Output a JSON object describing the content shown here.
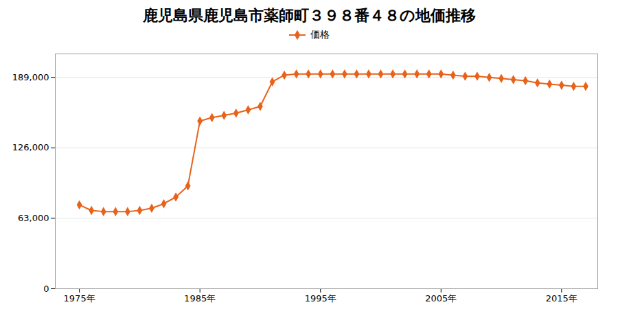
{
  "chart_data": {
    "type": "line",
    "title": "鹿児島県鹿児島市薬師町３９８番４８の地価推移",
    "x": [
      1975,
      1976,
      1977,
      1978,
      1979,
      1980,
      1981,
      1982,
      1983,
      1984,
      1985,
      1986,
      1987,
      1988,
      1989,
      1990,
      1991,
      1992,
      1993,
      1994,
      1995,
      1996,
      1997,
      1998,
      1999,
      2000,
      2001,
      2002,
      2003,
      2004,
      2005,
      2006,
      2007,
      2008,
      2009,
      2010,
      2011,
      2012,
      2013,
      2014,
      2015,
      2016,
      2017
    ],
    "series": [
      {
        "name": "価格",
        "color": "#e8621a",
        "marker": "diamond",
        "values": [
          75000,
          70000,
          69000,
          69000,
          69000,
          70000,
          72000,
          76000,
          82000,
          92000,
          150000,
          153000,
          155000,
          157000,
          160000,
          163000,
          185000,
          191000,
          192000,
          192000,
          192000,
          192000,
          192000,
          192000,
          192000,
          192000,
          192000,
          192000,
          192000,
          192000,
          192000,
          191000,
          190000,
          190000,
          189000,
          188000,
          187000,
          186000,
          184000,
          183000,
          182000,
          181000,
          181000
        ]
      }
    ],
    "xlim": [
      1973,
      2018
    ],
    "xticks": [
      {
        "value": 1975,
        "label": "1975年"
      },
      {
        "value": 1985,
        "label": "1985年"
      },
      {
        "value": 1995,
        "label": "1995年"
      },
      {
        "value": 2005,
        "label": "2005年"
      },
      {
        "value": 2015,
        "label": "2015年"
      }
    ],
    "ylim": [
      0,
      210000
    ],
    "yticks": [
      0,
      {
        "value": 63000,
        "label": "63,000"
      },
      {
        "value": 126000,
        "label": "126,000"
      },
      {
        "value": 189000,
        "label": "189,000"
      }
    ],
    "grid": "y",
    "legend": "top"
  }
}
